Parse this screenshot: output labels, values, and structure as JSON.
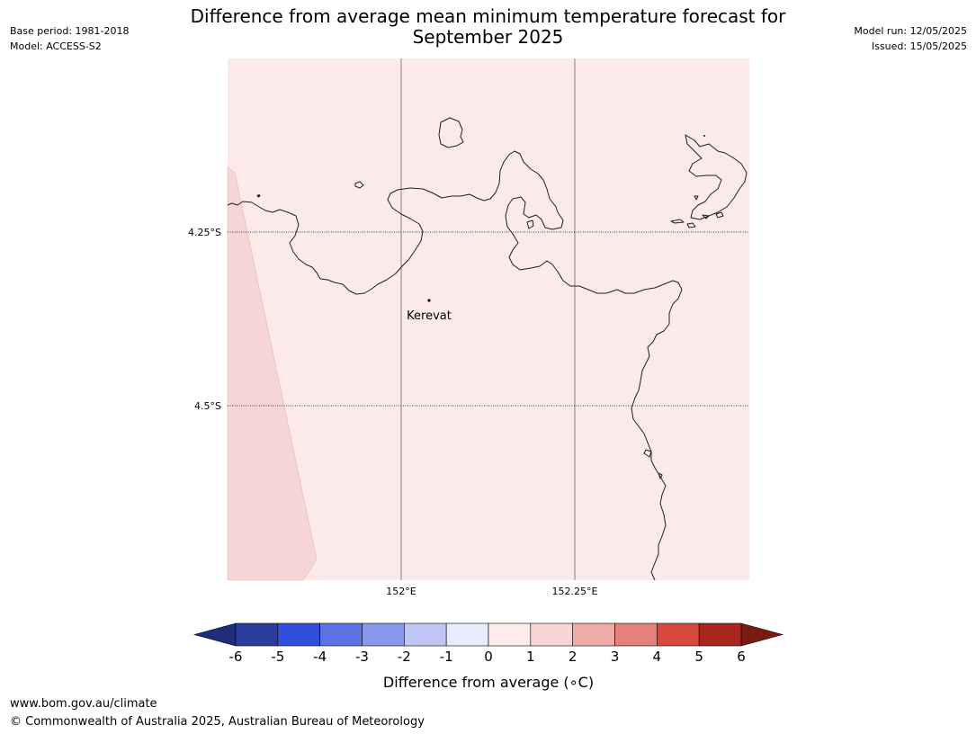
{
  "title_line1": "Difference from average mean minimum temperature forecast for",
  "title_line2": "September 2025",
  "base_period": "Base period: 1981-2018",
  "model": "Model: ACCESS-S2",
  "model_run": "Model run: 12/05/2025",
  "issued": "Issued: 15/05/2025",
  "map": {
    "latitude_labels": [
      "4.25°S",
      "4.5°S"
    ],
    "longitude_labels": [
      "152°E",
      "152.25°E"
    ],
    "places": [
      {
        "name": "Kerevat"
      }
    ],
    "fill_colors": {
      "ocean_main": "#fbeae9",
      "western_band": "#f6d6d5"
    }
  },
  "colorbar": {
    "label": "Difference from average (∘C)",
    "ticks": [
      "-6",
      "-5",
      "-4",
      "-3",
      "-2",
      "-1",
      "0",
      "1",
      "2",
      "3",
      "4",
      "5",
      "6"
    ],
    "colors": [
      "#2a3d9e",
      "#3050dc",
      "#5b72e4",
      "#8798ec",
      "#bfc6f3",
      "#e8ebfb",
      "#fceceb",
      "#f7d5d3",
      "#efaca7",
      "#e6817a",
      "#d9483d",
      "#a8261e"
    ],
    "low_extend_color": "#1f2e7a",
    "high_extend_color": "#7a1a15"
  },
  "footer_url": "www.bom.gov.au/climate",
  "footer_copyright": "© Commonwealth of Australia 2025, Australian Bureau of Meteorology"
}
